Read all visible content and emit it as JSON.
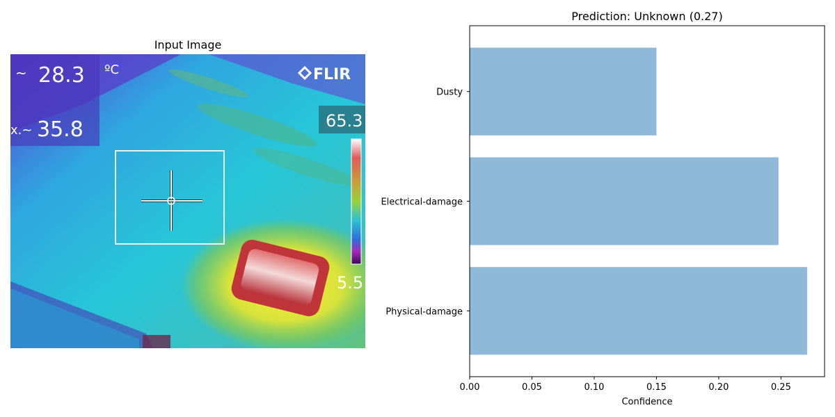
{
  "left_panel": {
    "title": "Input Image",
    "thermal": {
      "brand": "FLIR",
      "unit": "ºC",
      "readout_top": "28.3",
      "readout_top_prefix": "~",
      "readout_second": "35.8",
      "readout_second_prefix": "x.~",
      "scale_max": "65.3",
      "scale_min": "5.5"
    }
  },
  "chart_data": {
    "type": "bar",
    "orientation": "horizontal",
    "title": "Prediction: Unknown (0.27)",
    "xlabel": "Confidence",
    "ylabel": "",
    "categories": [
      "Physical-damage",
      "Electrical-damage",
      "Dusty"
    ],
    "values": [
      0.271,
      0.248,
      0.15
    ],
    "xlim": [
      0,
      0.285
    ],
    "xticks": [
      0.0,
      0.05,
      0.1,
      0.15,
      0.2,
      0.25
    ],
    "xtick_labels": [
      "0.00",
      "0.05",
      "0.10",
      "0.15",
      "0.20",
      "0.25"
    ],
    "bar_color": "#8fb9d9",
    "grid": false,
    "legend": "none"
  }
}
